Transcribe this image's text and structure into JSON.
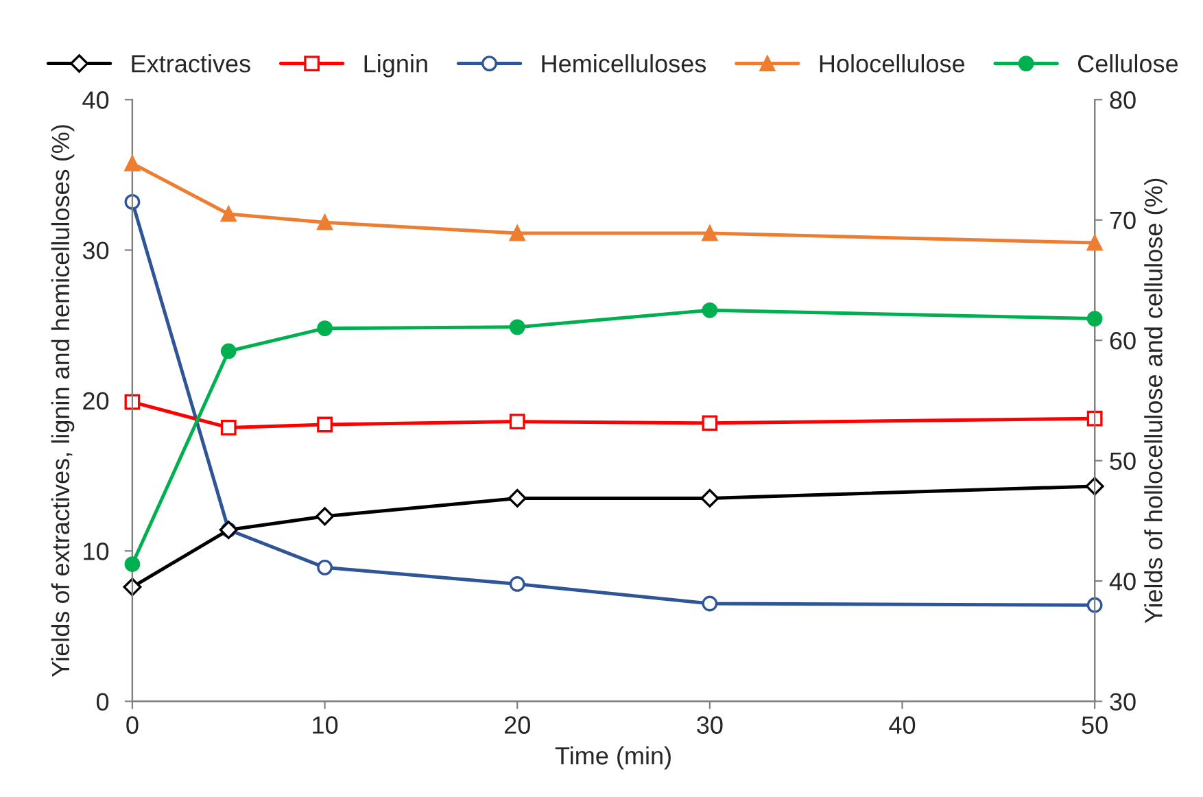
{
  "chart_data": {
    "type": "line",
    "xlabel": "Time (min)",
    "ylabel": "Yields of extractives, lignin and hemicelluloses (%)",
    "y2label": "Yields of hollocellulose and cellulose (%)",
    "x": [
      0,
      5,
      10,
      20,
      30,
      50
    ],
    "xlim": [
      0,
      50
    ],
    "xticks": [
      0,
      10,
      20,
      30,
      40,
      50
    ],
    "ylim": [
      0,
      40
    ],
    "yticks": [
      0,
      10,
      20,
      30,
      40
    ],
    "y2lim": [
      30,
      80
    ],
    "y2ticks": [
      30,
      40,
      50,
      60,
      70,
      80
    ],
    "grid": false,
    "legend": "top",
    "line_style": "solid",
    "series": [
      {
        "name": "Extractives",
        "color": "#000000",
        "marker": "diamond",
        "values": [
          7.6,
          11.4,
          12.3,
          13.5,
          13.5,
          14.3
        ]
      },
      {
        "name": "Lignin",
        "color": "#ff0000",
        "marker": "square",
        "values": [
          19.9,
          18.2,
          18.4,
          18.6,
          18.5,
          18.8
        ]
      },
      {
        "name": "Hemicelluloses",
        "color": "#2f5597",
        "marker": "circle",
        "values": [
          33.2,
          11.4,
          8.9,
          7.8,
          6.5,
          6.4
        ]
      },
      {
        "name": "Holocellulose",
        "color": "#ed7d31",
        "marker": "triangle",
        "axis": "y2",
        "values": [
          74.7,
          70.5,
          69.8,
          68.9,
          68.9,
          68.1
        ]
      },
      {
        "name": "Cellulose",
        "color": "#00b050",
        "marker": "circle",
        "axis": "y2",
        "values": [
          41.4,
          59.1,
          61.0,
          61.1,
          62.5,
          61.8
        ]
      }
    ]
  }
}
